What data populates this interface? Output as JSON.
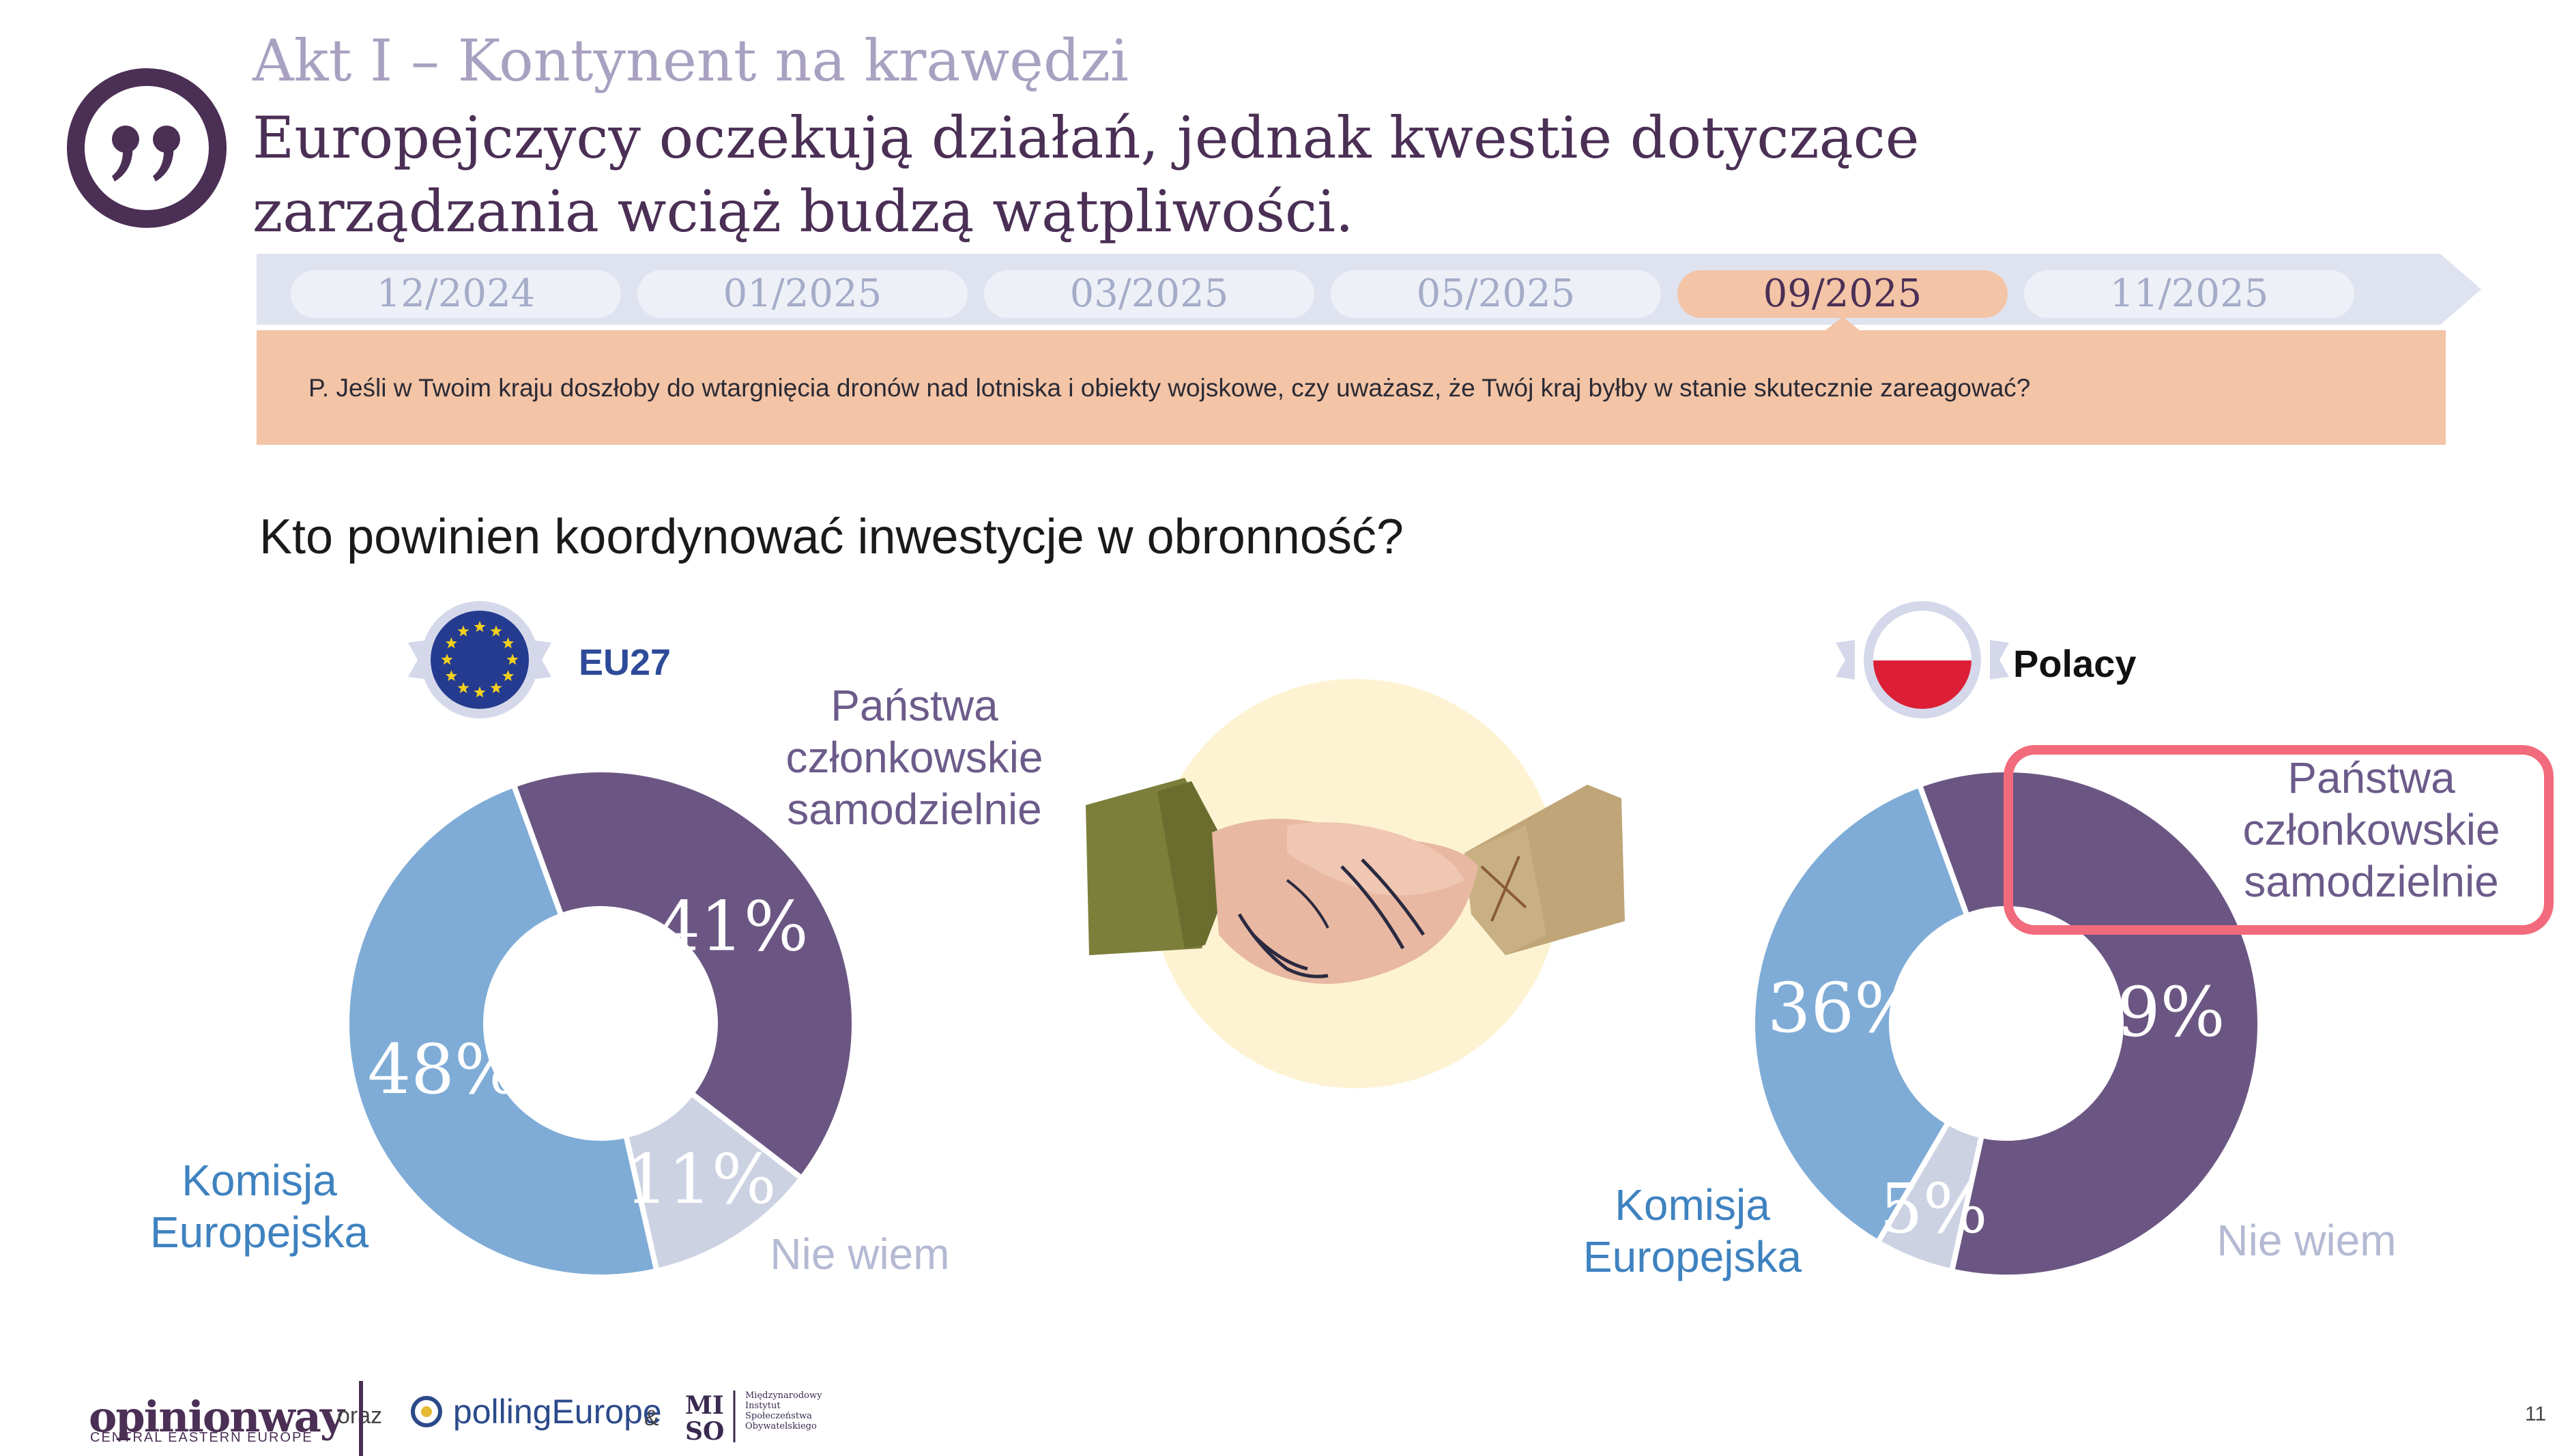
{
  "header": {
    "act_title": "Akt I – Kontynent na krawędzi",
    "headline": "Europejczycy oczekują działań, jednak kwestie dotyczące zarządzania wciąż budzą wątpliwości."
  },
  "timeline": {
    "items": [
      "12/2024",
      "01/2025",
      "03/2025",
      "05/2025",
      "09/2025",
      "11/2025"
    ],
    "active": "09/2025"
  },
  "question": "P. Jeśli w Twoim kraju doszłoby do wtargnięcia dronów nad lotniska i obiekty wojskowe, czy uważasz, że Twój kraj byłby w stanie skutecznie zareagować?",
  "section_title": "Kto powinien koordynować inwestycje w obronność?",
  "groups": {
    "eu": {
      "label": "EU27"
    },
    "pl": {
      "label": "Polacy"
    }
  },
  "labels": {
    "member_states": "Państwa członkowskie samodzielnie",
    "member_states_lines": [
      "Państwa",
      "członkowskie",
      "samodzielnie"
    ],
    "commission_lines": [
      "Komisja",
      "Europejska"
    ],
    "dont_know": "Nie wiem"
  },
  "colors": {
    "member_states": "#6b5683",
    "commission": "#7facd6",
    "dont_know": "#cdd2e3",
    "highlight": "#f26b7c",
    "accent": "#4b2f55"
  },
  "chart_data": [
    {
      "type": "pie",
      "group": "EU27",
      "title": "Kto powinien koordynować inwestycje w obronność?",
      "slices": [
        {
          "name": "Państwa członkowskie samodzielnie",
          "value": 41
        },
        {
          "name": "Nie wiem",
          "value": 11
        },
        {
          "name": "Komisja Europejska",
          "value": 48
        }
      ],
      "value_labels": [
        "41%",
        "11%",
        "48%"
      ]
    },
    {
      "type": "pie",
      "group": "Polacy",
      "title": "Kto powinien koordynować inwestycje w obronność?",
      "slices": [
        {
          "name": "Państwa członkowskie samodzielnie",
          "value": 59
        },
        {
          "name": "Nie wiem",
          "value": 5
        },
        {
          "name": "Komisja Europejska",
          "value": 36
        }
      ],
      "value_labels": [
        "59%",
        "5%",
        "36%"
      ]
    }
  ],
  "footer": {
    "opinionway": "opinionway",
    "opinionway_sub": "CENTRAL EASTERN EUROPE",
    "oraz": "oraz",
    "polling": "pollingEurope",
    "amp": "&",
    "miso_mark": "MISO",
    "miso_text": [
      "Międzynarodowy",
      "Instytut",
      "Społeczeństwa",
      "Obywatelskiego"
    ],
    "page_number": "11"
  }
}
